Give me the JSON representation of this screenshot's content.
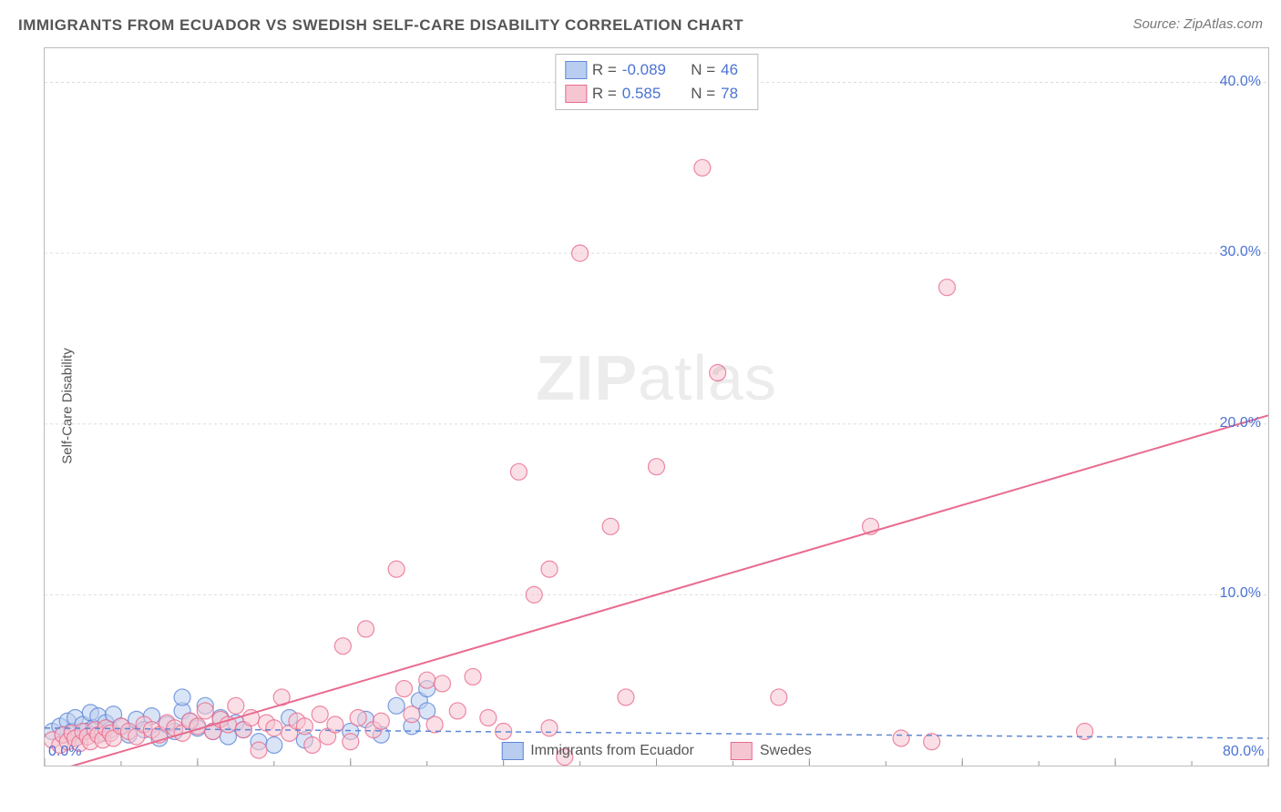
{
  "header": {
    "title": "IMMIGRANTS FROM ECUADOR VS SWEDISH SELF-CARE DISABILITY CORRELATION CHART",
    "source": "Source: ZipAtlas.com"
  },
  "watermark": {
    "zip": "ZIP",
    "atlas": "atlas"
  },
  "chart": {
    "type": "scatter",
    "ylabel": "Self-Care Disability",
    "xlim": [
      0,
      80
    ],
    "ylim": [
      0,
      42
    ],
    "xtick_step": 10,
    "ytick_step": 10,
    "xtick_labels": {
      "0": "0.0%",
      "80": "80.0%"
    },
    "ytick_labels": {
      "10": "10.0%",
      "20": "20.0%",
      "30": "30.0%",
      "40": "40.0%"
    },
    "grid_color": "#dddddd",
    "axis_color": "#bbbbbb",
    "tick_color": "#999999",
    "label_color": "#4b73d4",
    "background_color": "#ffffff",
    "marker_radius": 9,
    "marker_opacity": 0.55,
    "marker_stroke_width": 1.2,
    "series": [
      {
        "name": "Immigrants from Ecuador",
        "color_fill": "#b9cdf0",
        "color_stroke": "#5e87d6",
        "R": "-0.089",
        "N": "46",
        "trend": {
          "x0": 0,
          "y0": 2.2,
          "x1": 80,
          "y1": 1.6,
          "dash": "6,5",
          "width": 1.5,
          "color": "#5e87d6"
        },
        "points": [
          [
            0.5,
            2.0
          ],
          [
            1.0,
            2.3
          ],
          [
            1.2,
            1.8
          ],
          [
            1.5,
            2.6
          ],
          [
            1.8,
            2.0
          ],
          [
            2.0,
            2.8
          ],
          [
            2.2,
            1.7
          ],
          [
            2.5,
            2.4
          ],
          [
            2.7,
            2.0
          ],
          [
            3.0,
            3.1
          ],
          [
            3.2,
            2.2
          ],
          [
            3.5,
            2.9
          ],
          [
            3.8,
            1.9
          ],
          [
            4.0,
            2.5
          ],
          [
            4.3,
            2.1
          ],
          [
            4.5,
            3.0
          ],
          [
            5.0,
            2.3
          ],
          [
            5.5,
            1.8
          ],
          [
            6.0,
            2.7
          ],
          [
            6.5,
            2.1
          ],
          [
            7.0,
            2.9
          ],
          [
            7.5,
            1.6
          ],
          [
            8.0,
            2.4
          ],
          [
            8.5,
            2.0
          ],
          [
            9.0,
            3.2
          ],
          [
            9.0,
            4.0
          ],
          [
            9.5,
            2.6
          ],
          [
            10.0,
            2.2
          ],
          [
            10.5,
            3.5
          ],
          [
            11.0,
            2.0
          ],
          [
            11.5,
            2.8
          ],
          [
            12.0,
            1.7
          ],
          [
            12.5,
            2.5
          ],
          [
            13.0,
            2.1
          ],
          [
            14.0,
            1.4
          ],
          [
            15.0,
            1.2
          ],
          [
            16.0,
            2.8
          ],
          [
            17.0,
            1.5
          ],
          [
            20.0,
            2.0
          ],
          [
            21.0,
            2.7
          ],
          [
            22.0,
            1.8
          ],
          [
            23.0,
            3.5
          ],
          [
            24.0,
            2.3
          ],
          [
            24.5,
            3.8
          ],
          [
            25.0,
            3.2
          ],
          [
            25.0,
            4.5
          ]
        ]
      },
      {
        "name": "Swedes",
        "color_fill": "#f5c6d2",
        "color_stroke": "#e96b8f",
        "R": "0.585",
        "N": "78",
        "trend": {
          "x0": 0,
          "y0": -0.5,
          "x1": 80,
          "y1": 20.5,
          "dash": "",
          "width": 2.0,
          "color": "#e96b8f"
        },
        "points": [
          [
            0.5,
            1.5
          ],
          [
            1.0,
            1.2
          ],
          [
            1.2,
            1.8
          ],
          [
            1.5,
            1.4
          ],
          [
            1.8,
            1.9
          ],
          [
            2.0,
            1.6
          ],
          [
            2.3,
            1.3
          ],
          [
            2.5,
            2.0
          ],
          [
            2.8,
            1.7
          ],
          [
            3.0,
            1.4
          ],
          [
            3.3,
            2.1
          ],
          [
            3.5,
            1.8
          ],
          [
            3.8,
            1.5
          ],
          [
            4.0,
            2.2
          ],
          [
            4.3,
            1.9
          ],
          [
            4.5,
            1.6
          ],
          [
            5.0,
            2.3
          ],
          [
            5.5,
            2.0
          ],
          [
            6.0,
            1.7
          ],
          [
            6.5,
            2.4
          ],
          [
            7.0,
            2.1
          ],
          [
            7.5,
            1.8
          ],
          [
            8.0,
            2.5
          ],
          [
            8.5,
            2.2
          ],
          [
            9.0,
            1.9
          ],
          [
            9.5,
            2.6
          ],
          [
            10.0,
            2.3
          ],
          [
            10.5,
            3.2
          ],
          [
            11.0,
            2.0
          ],
          [
            11.5,
            2.7
          ],
          [
            12.0,
            2.4
          ],
          [
            12.5,
            3.5
          ],
          [
            13.0,
            2.1
          ],
          [
            13.5,
            2.8
          ],
          [
            14.0,
            0.9
          ],
          [
            14.5,
            2.5
          ],
          [
            15.0,
            2.2
          ],
          [
            15.5,
            4.0
          ],
          [
            16.0,
            1.9
          ],
          [
            16.5,
            2.6
          ],
          [
            17.0,
            2.3
          ],
          [
            17.5,
            1.2
          ],
          [
            18.0,
            3.0
          ],
          [
            18.5,
            1.7
          ],
          [
            19.0,
            2.4
          ],
          [
            19.5,
            7.0
          ],
          [
            20.0,
            1.4
          ],
          [
            20.5,
            2.8
          ],
          [
            21.0,
            8.0
          ],
          [
            21.5,
            2.1
          ],
          [
            22.0,
            2.6
          ],
          [
            23.0,
            11.5
          ],
          [
            23.5,
            4.5
          ],
          [
            24.0,
            3.0
          ],
          [
            25.0,
            5.0
          ],
          [
            25.5,
            2.4
          ],
          [
            26.0,
            4.8
          ],
          [
            27.0,
            3.2
          ],
          [
            28.0,
            5.2
          ],
          [
            29.0,
            2.8
          ],
          [
            30.0,
            2.0
          ],
          [
            31.0,
            17.2
          ],
          [
            32.0,
            10.0
          ],
          [
            33.0,
            11.5
          ],
          [
            33.0,
            2.2
          ],
          [
            34.0,
            0.5
          ],
          [
            35.0,
            30.0
          ],
          [
            37.0,
            14.0
          ],
          [
            38.0,
            4.0
          ],
          [
            40.0,
            17.5
          ],
          [
            43.0,
            35.0
          ],
          [
            44.0,
            23.0
          ],
          [
            48.0,
            4.0
          ],
          [
            54.0,
            14.0
          ],
          [
            56.0,
            1.6
          ],
          [
            58.0,
            1.4
          ],
          [
            59.0,
            28.0
          ],
          [
            68.0,
            2.0
          ]
        ]
      }
    ],
    "bottom_legend": [
      {
        "label": "Immigrants from Ecuador",
        "fill": "#b9cdf0",
        "stroke": "#5e87d6"
      },
      {
        "label": "Swedes",
        "fill": "#f5c6d2",
        "stroke": "#e96b8f"
      }
    ]
  }
}
